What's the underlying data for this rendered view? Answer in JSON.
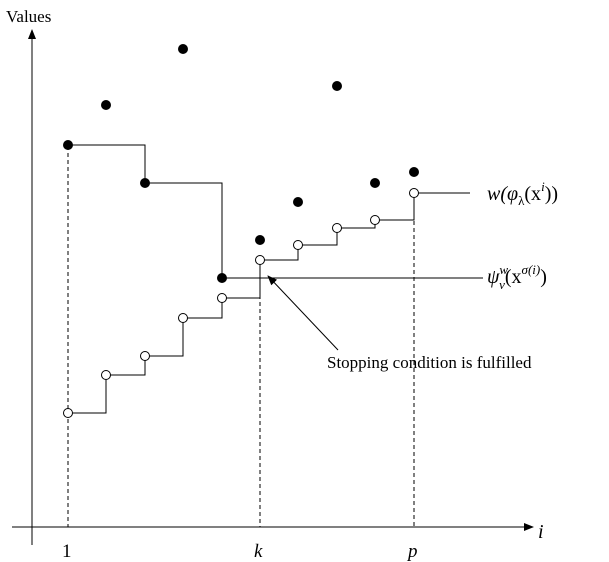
{
  "axes": {
    "y_label": "Values",
    "x_label": "i",
    "x_ticks": [
      {
        "label": "1",
        "italic": false
      },
      {
        "label": "k",
        "italic": true
      },
      {
        "label": "p",
        "italic": true
      }
    ]
  },
  "curve_labels": {
    "upper": {
      "base": "w(φ",
      "sub": "λ",
      "mid": "(x",
      "sup": "i",
      "end": "))"
    },
    "lower": {
      "base": "ψ",
      "sup": "w",
      "sub": "v",
      "mid": "(x",
      "sup2": "σ(i)",
      "end": ")"
    }
  },
  "annotation": "Stopping condition is fulfilled",
  "colors": {
    "ink": "#000000",
    "background": "#ffffff"
  }
}
